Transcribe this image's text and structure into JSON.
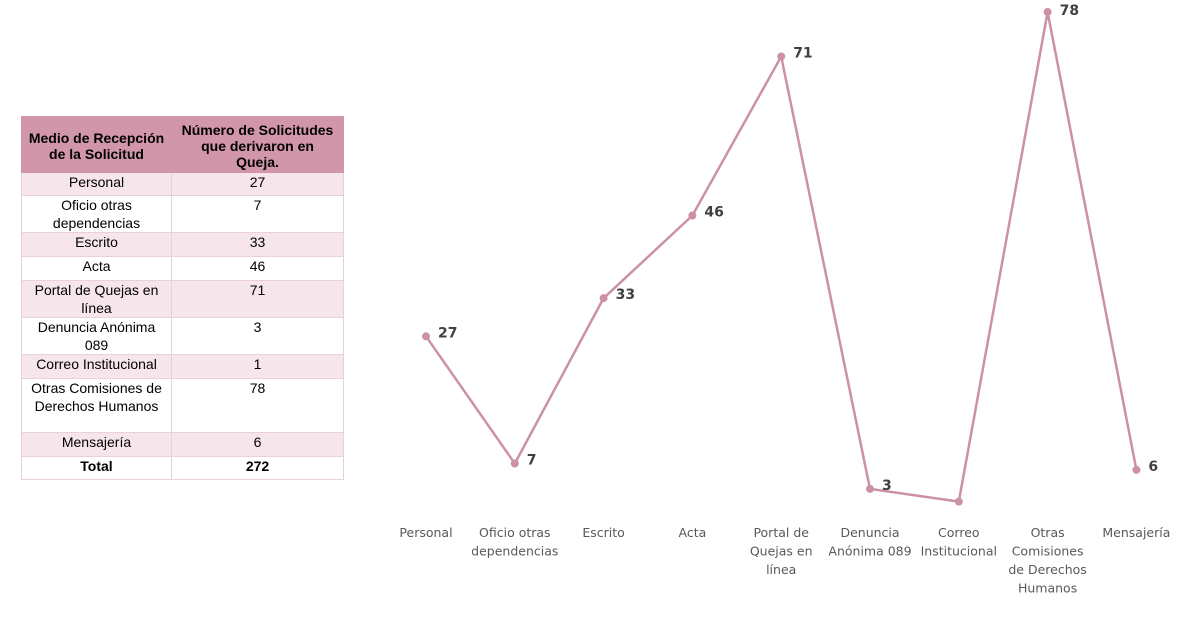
{
  "table": {
    "headers": [
      "Medio de Recepción de la Solicitud",
      "Número de Solicitudes que derivaron en Queja."
    ],
    "rows": [
      [
        "Personal",
        "27"
      ],
      [
        "Oficio otras dependencias",
        "7"
      ],
      [
        "Escrito",
        "33"
      ],
      [
        "Acta",
        "46"
      ],
      [
        "Portal de Quejas en línea",
        "71"
      ],
      [
        "Denuncia Anónima 089",
        "3"
      ],
      [
        "Correo Institucional",
        "1"
      ],
      [
        "Otras Comisiones de Derechos Humanos",
        "78"
      ],
      [
        "Mensajería",
        "6"
      ]
    ],
    "total_label": "Total",
    "total_value": "272"
  },
  "chart_data": {
    "type": "line",
    "categories": [
      "Personal",
      "Oficio otras dependencias",
      "Escrito",
      "Acta",
      "Portal de Quejas en línea",
      "Denuncia Anónima 089",
      "Correo Institucional",
      "Otras Comisiones de Derechos Humanos",
      "Mensajería"
    ],
    "category_label_lines": [
      [
        "Personal"
      ],
      [
        "Oficio otras",
        "dependencias"
      ],
      [
        "Escrito"
      ],
      [
        "Acta"
      ],
      [
        "Portal de",
        "Quejas en",
        "línea"
      ],
      [
        "Denuncia",
        "Anónima 089"
      ],
      [
        "Correo",
        "Institucional"
      ],
      [
        "Otras",
        "Comisiones",
        "de Derechos",
        "Humanos"
      ],
      [
        "Mensajería"
      ]
    ],
    "series": [
      {
        "values": [
          27,
          7,
          33,
          46,
          71,
          3,
          1,
          78,
          6
        ],
        "data_labels": [
          "27",
          "7",
          "33",
          "46",
          "71",
          "3",
          "",
          "78",
          "6"
        ],
        "color": "#cc91a8"
      }
    ],
    "ylim": [
      0,
      78
    ],
    "grid": false,
    "legend": "none"
  }
}
